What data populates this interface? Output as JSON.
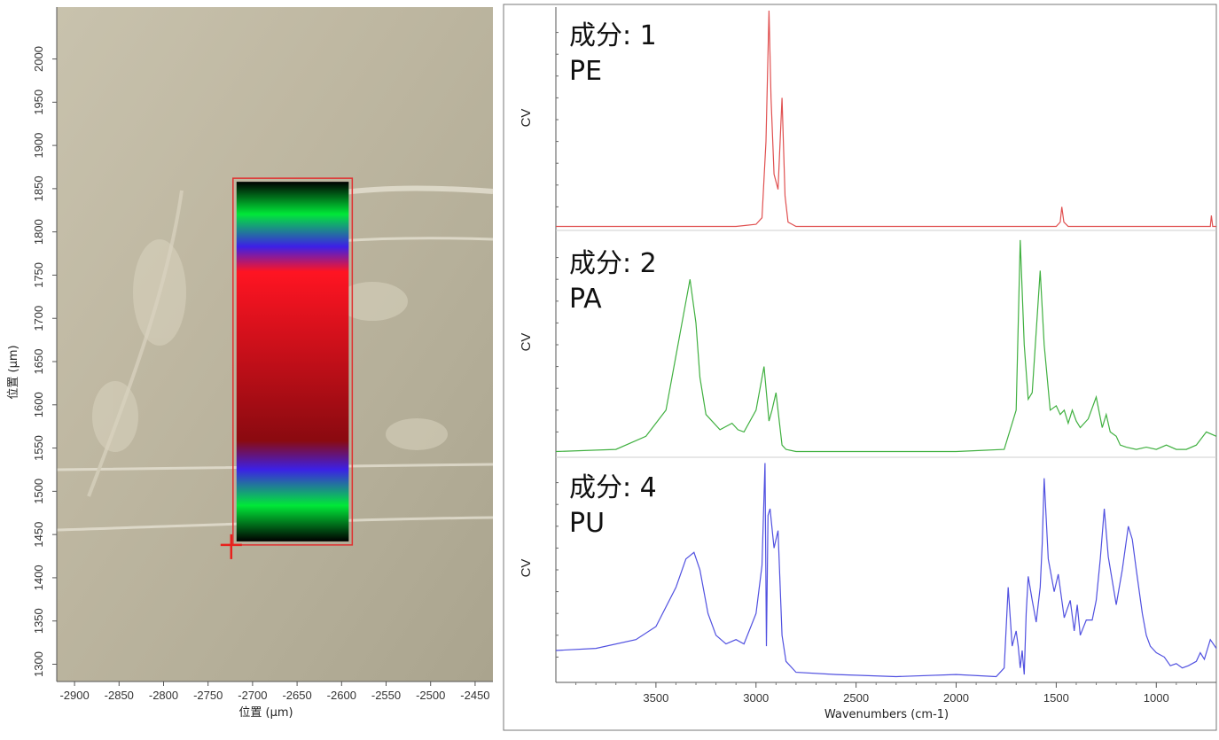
{
  "map": {
    "xlabel": "位置 (µm)",
    "ylabel": "位置 (µm)",
    "xlim": [
      -2920,
      -2430
    ],
    "ylim": [
      1280,
      2060
    ],
    "x_ticks": [
      -2900,
      -2850,
      -2800,
      -2750,
      -2700,
      -2650,
      -2600,
      -2550,
      -2500,
      -2450
    ],
    "y_ticks": [
      1300,
      1350,
      1400,
      1450,
      1500,
      1550,
      1600,
      1650,
      1700,
      1750,
      1800,
      1850,
      1900,
      1950,
      2000
    ],
    "mapped_region": {
      "x": [
        -2720,
        -2590
      ],
      "y": [
        1440,
        1860
      ]
    },
    "band_colors": [
      "#000000",
      "#00e838",
      "#3c20e6",
      "#ff1422",
      "#8a0a10",
      "#3c20e6",
      "#00e838",
      "#000000"
    ],
    "colors": {
      "region_outline": "#e03030",
      "marker": "#e8201c"
    }
  },
  "chart_data": [
    {
      "type": "line",
      "title": "成分: 1",
      "subtitle": "PE",
      "ylabel": "CV",
      "color": "#e05050",
      "x": [
        4000,
        3500,
        3100,
        3000,
        2970,
        2950,
        2935,
        2925,
        2910,
        2890,
        2870,
        2855,
        2840,
        2800,
        2700,
        1500,
        1480,
        1472,
        1462,
        1440,
        1000,
        730,
        725,
        718,
        700
      ],
      "y": [
        0.01,
        0.01,
        0.01,
        0.02,
        0.05,
        0.4,
        1.0,
        0.6,
        0.25,
        0.18,
        0.6,
        0.15,
        0.03,
        0.01,
        0.01,
        0.01,
        0.03,
        0.1,
        0.03,
        0.01,
        0.01,
        0.01,
        0.06,
        0.01,
        0.01
      ]
    },
    {
      "type": "line",
      "title": "成分: 2",
      "subtitle": "PA",
      "ylabel": "CV",
      "color": "#40b040",
      "x": [
        4000,
        3700,
        3550,
        3450,
        3380,
        3330,
        3300,
        3280,
        3250,
        3180,
        3120,
        3090,
        3060,
        3000,
        2960,
        2935,
        2920,
        2900,
        2870,
        2850,
        2800,
        2500,
        2000,
        1760,
        1700,
        1680,
        1660,
        1640,
        1620,
        1580,
        1560,
        1530,
        1500,
        1480,
        1460,
        1440,
        1420,
        1400,
        1380,
        1340,
        1300,
        1270,
        1250,
        1230,
        1200,
        1180,
        1150,
        1100,
        1050,
        1000,
        950,
        900,
        850,
        800,
        750,
        700
      ],
      "y": [
        0.01,
        0.02,
        0.08,
        0.2,
        0.55,
        0.8,
        0.6,
        0.35,
        0.18,
        0.11,
        0.14,
        0.11,
        0.1,
        0.2,
        0.4,
        0.15,
        0.2,
        0.28,
        0.04,
        0.02,
        0.01,
        0.01,
        0.01,
        0.02,
        0.2,
        0.98,
        0.5,
        0.25,
        0.28,
        0.84,
        0.5,
        0.2,
        0.22,
        0.18,
        0.2,
        0.14,
        0.2,
        0.15,
        0.12,
        0.16,
        0.26,
        0.12,
        0.18,
        0.1,
        0.08,
        0.04,
        0.03,
        0.02,
        0.03,
        0.02,
        0.04,
        0.02,
        0.02,
        0.04,
        0.1,
        0.08
      ]
    },
    {
      "type": "line",
      "title": "成分: 4",
      "subtitle": "PU",
      "ylabel": "CV",
      "color": "#5050e0",
      "x": [
        4000,
        3800,
        3600,
        3500,
        3400,
        3350,
        3310,
        3280,
        3240,
        3200,
        3150,
        3100,
        3060,
        3000,
        2970,
        2955,
        2948,
        2940,
        2930,
        2910,
        2890,
        2870,
        2850,
        2800,
        2600,
        2300,
        2000,
        1800,
        1760,
        1740,
        1720,
        1700,
        1690,
        1680,
        1670,
        1660,
        1650,
        1640,
        1620,
        1600,
        1580,
        1570,
        1560,
        1540,
        1510,
        1490,
        1460,
        1430,
        1410,
        1395,
        1380,
        1350,
        1320,
        1300,
        1280,
        1260,
        1240,
        1200,
        1170,
        1140,
        1120,
        1100,
        1070,
        1050,
        1030,
        1000,
        960,
        930,
        900,
        870,
        840,
        800,
        780,
        760,
        730,
        700
      ],
      "y": [
        0.13,
        0.14,
        0.18,
        0.24,
        0.42,
        0.55,
        0.58,
        0.5,
        0.3,
        0.2,
        0.16,
        0.18,
        0.16,
        0.3,
        0.52,
        0.99,
        0.15,
        0.75,
        0.78,
        0.6,
        0.68,
        0.2,
        0.08,
        0.03,
        0.02,
        0.01,
        0.02,
        0.01,
        0.05,
        0.42,
        0.15,
        0.22,
        0.15,
        0.05,
        0.13,
        0.02,
        0.3,
        0.47,
        0.36,
        0.26,
        0.42,
        0.62,
        0.92,
        0.55,
        0.4,
        0.48,
        0.28,
        0.36,
        0.22,
        0.34,
        0.2,
        0.27,
        0.27,
        0.36,
        0.55,
        0.78,
        0.56,
        0.34,
        0.5,
        0.7,
        0.64,
        0.5,
        0.3,
        0.2,
        0.15,
        0.12,
        0.1,
        0.06,
        0.07,
        0.05,
        0.06,
        0.08,
        0.12,
        0.09,
        0.18,
        0.14
      ]
    }
  ],
  "spectra_axis": {
    "xlabel": "Wavenumbers (cm-1)",
    "xlim": [
      4000,
      700
    ],
    "x_ticks": [
      3500,
      3000,
      2500,
      2000,
      1500,
      1000
    ]
  }
}
